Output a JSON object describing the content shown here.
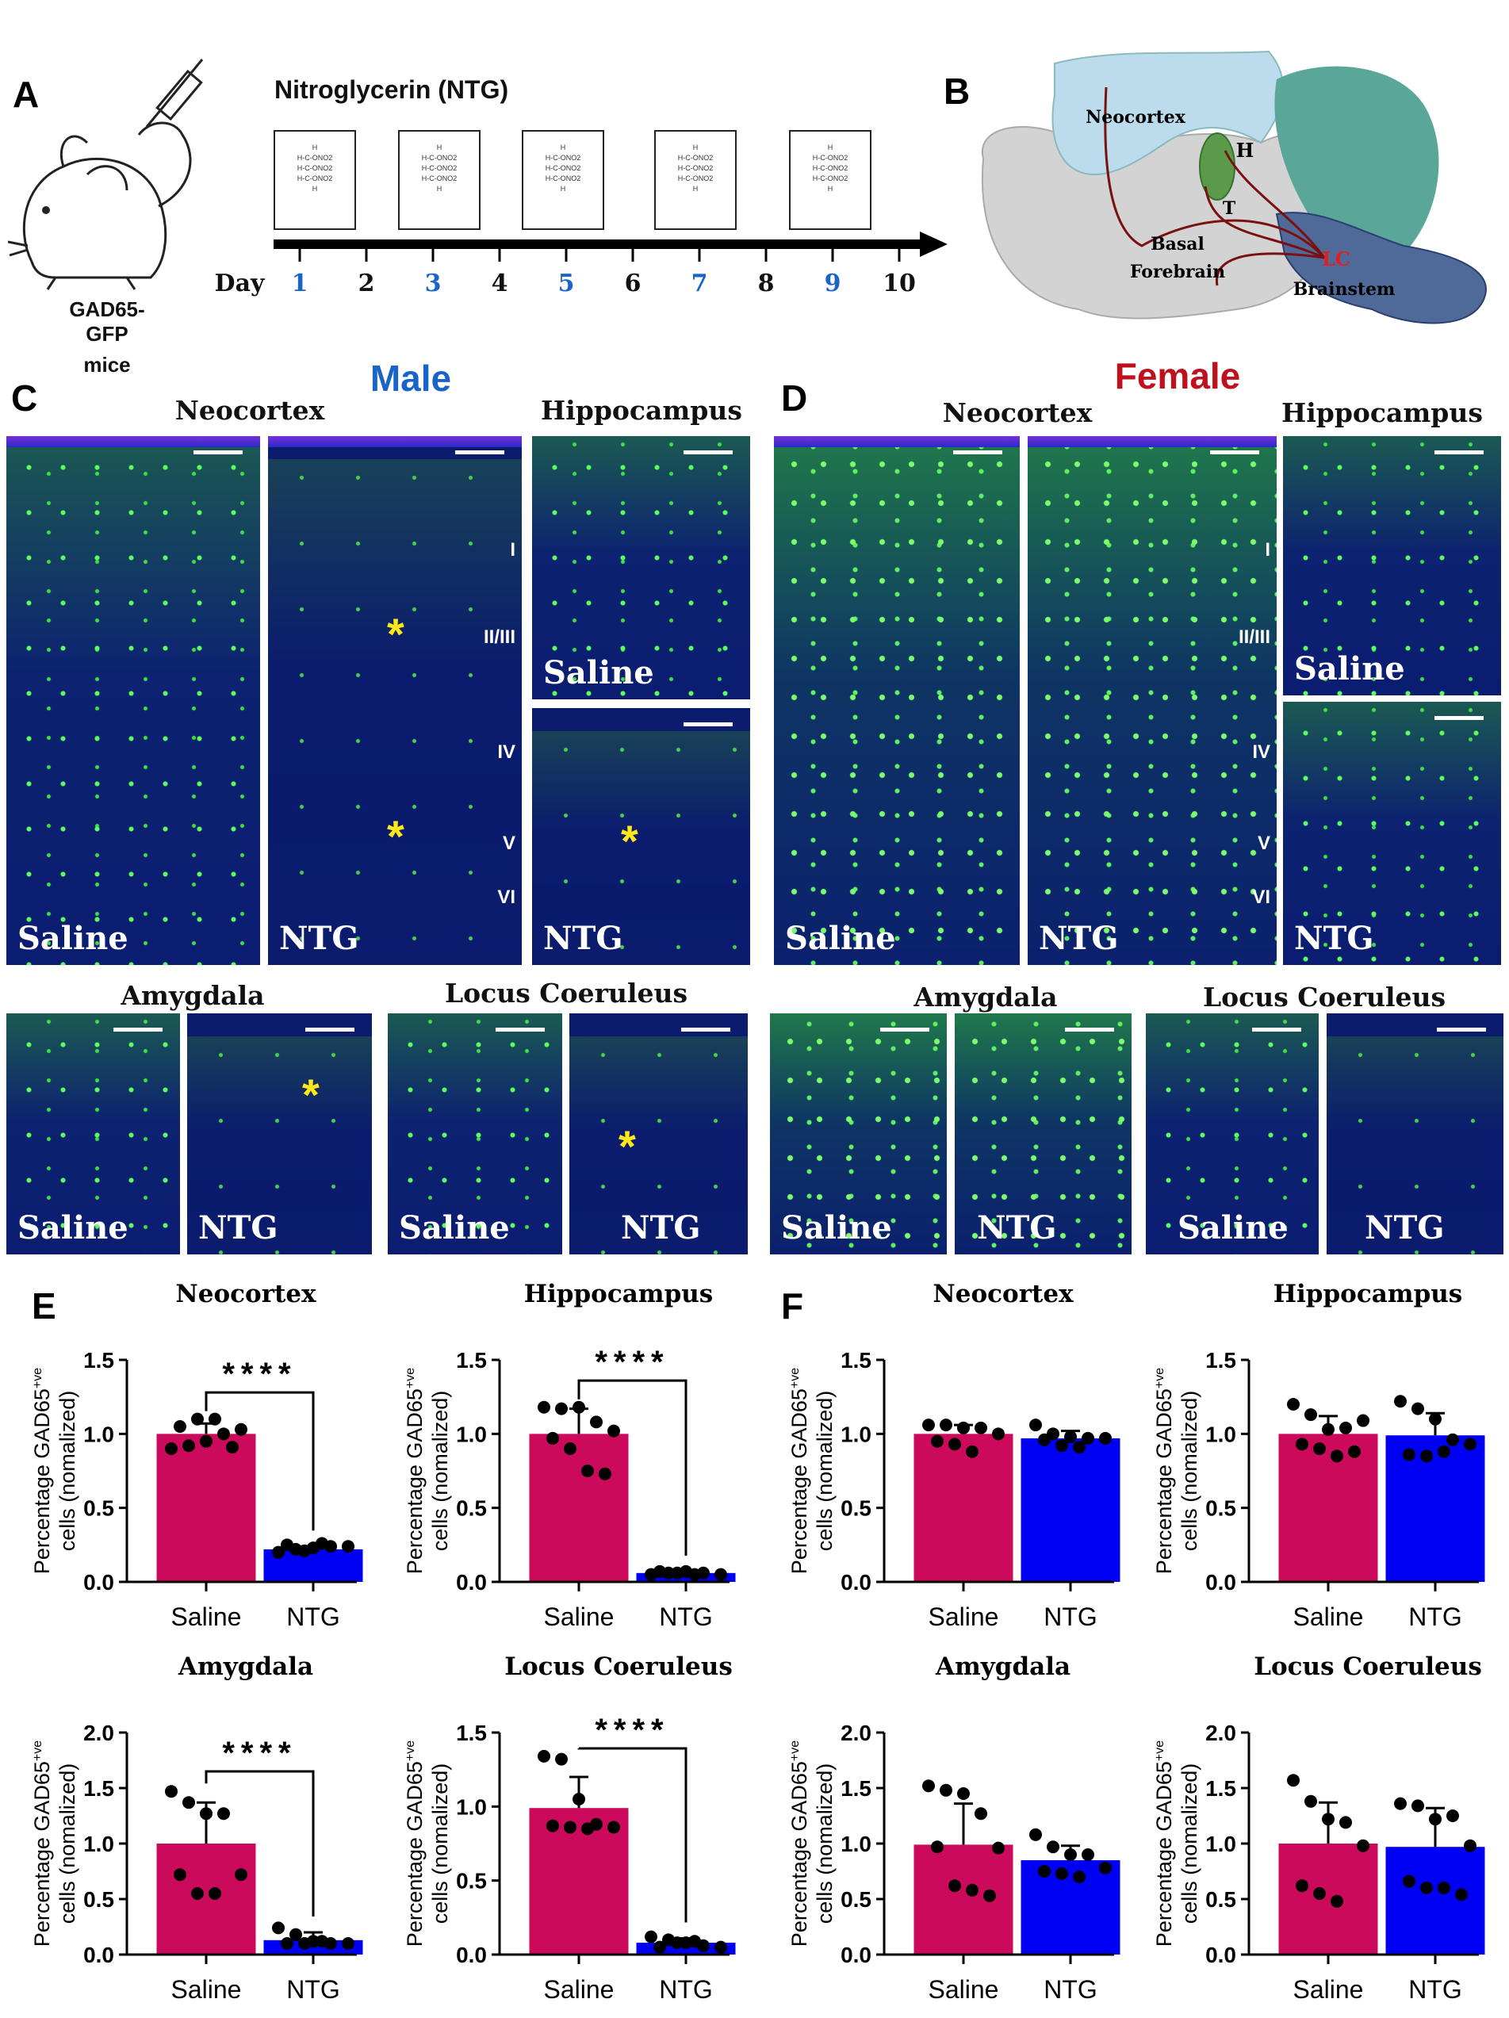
{
  "panel_labels": {
    "a": "A",
    "b": "B",
    "c": "C",
    "d": "D",
    "e": "E",
    "f": "F"
  },
  "panel_a": {
    "title": "Nitroglycerin (NTG)",
    "mouse_label_line1": "GAD65-GFP",
    "mouse_label_line2": "mice",
    "day_label": "Day",
    "molecule_text": [
      "H",
      "H-C-ONO2",
      "H-C-ONO2",
      "H-C-ONO2",
      "H"
    ],
    "days": [
      {
        "n": "1",
        "injection": true
      },
      {
        "n": "2",
        "injection": false
      },
      {
        "n": "3",
        "injection": true
      },
      {
        "n": "4",
        "injection": false
      },
      {
        "n": "5",
        "injection": true
      },
      {
        "n": "6",
        "injection": false
      },
      {
        "n": "7",
        "injection": true
      },
      {
        "n": "8",
        "injection": false
      },
      {
        "n": "9",
        "injection": true
      },
      {
        "n": "10",
        "injection": false
      }
    ],
    "injection_day_color": "#1a64c8"
  },
  "panel_b": {
    "labels": {
      "neocortex": "Neocortex",
      "h": "H",
      "t": "T",
      "basal": "Basal",
      "forebrain": "Forebrain",
      "lc": "LC",
      "brainstem": "Brainstem"
    }
  },
  "panel_c": {
    "sex": "Male",
    "sex_color": "#1a64c8",
    "neocortex": "Neocortex",
    "hippocampus": "Hippocampus",
    "amygdala": "Amygdala",
    "locus_coeruleus": "Locus Coeruleus",
    "saline": "Saline",
    "ntg": "NTG"
  },
  "panel_d": {
    "sex": "Female",
    "sex_color": "#c0101e",
    "neocortex": "Neocortex",
    "hippocampus": "Hippocampus",
    "amygdala": "Amygdala",
    "locus_coeruleus": "Locus Coeruleus",
    "saline": "Saline",
    "ntg": "NTG"
  },
  "layers": [
    "I",
    "II/III",
    "IV",
    "V",
    "VI"
  ],
  "asterisk": "*",
  "colors": {
    "saline": "#cc0a5c",
    "ntg": "#0000f5"
  },
  "chart_data": [
    {
      "panel": "E",
      "type": "bar",
      "title": "Neocortex",
      "ylabel_line1": "Percentage GAD65",
      "ylabel_sup": "+ve",
      "ylabel_line2": "cells (nomalized)",
      "categories": [
        "Saline",
        "NTG"
      ],
      "values": [
        1.0,
        0.22
      ],
      "error": [
        0.07,
        0.02
      ],
      "ylim": [
        0,
        1.5
      ],
      "yticks": [
        "0.0",
        "0.5",
        "1.0",
        "1.5"
      ],
      "points": [
        [
          0.9,
          0.92,
          0.95,
          1.0,
          1.03,
          1.05,
          1.1,
          1.1,
          0.91
        ],
        [
          0.2,
          0.22,
          0.23,
          0.24,
          0.24,
          0.25,
          0.21,
          0.26
        ]
      ],
      "significance": "****"
    },
    {
      "panel": "E",
      "type": "bar",
      "title": "Hippocampus",
      "ylabel_line1": "Percentage GAD65",
      "ylabel_sup": "+ve",
      "ylabel_line2": "cells (nomalized)",
      "categories": [
        "Saline",
        "NTG"
      ],
      "values": [
        1.0,
        0.06
      ],
      "error": [
        0.17,
        0.01
      ],
      "ylim": [
        0,
        1.5
      ],
      "yticks": [
        "0.0",
        "0.5",
        "1.0",
        "1.5"
      ],
      "points": [
        [
          1.18,
          1.17,
          1.18,
          1.08,
          1.02,
          0.97,
          0.9,
          0.75,
          0.73
        ],
        [
          0.05,
          0.06,
          0.07,
          0.06,
          0.05,
          0.07,
          0.06,
          0.05
        ]
      ],
      "significance": "****"
    },
    {
      "panel": "E",
      "type": "bar",
      "title": "Amygdala",
      "ylabel_line1": "Percentage GAD65",
      "ylabel_sup": "+ve",
      "ylabel_line2": "cells (nomalized)",
      "categories": [
        "Saline",
        "NTG"
      ],
      "values": [
        1.0,
        0.13
      ],
      "error": [
        0.37,
        0.07
      ],
      "ylim": [
        0,
        2.0
      ],
      "yticks": [
        "0.0",
        "0.5",
        "1.0",
        "1.5",
        "2.0"
      ],
      "points": [
        [
          1.47,
          1.37,
          1.27,
          1.27,
          0.72,
          0.72,
          0.55,
          0.55
        ],
        [
          0.24,
          0.18,
          0.12,
          0.1,
          0.1,
          0.1,
          0.1,
          0.12
        ]
      ],
      "significance": "****"
    },
    {
      "panel": "E",
      "type": "bar",
      "title": "Locus Coeruleus",
      "ylabel_line1": "Percentage GAD65",
      "ylabel_sup": "+ve",
      "ylabel_line2": "cells (nomalized)",
      "categories": [
        "Saline",
        "NTG"
      ],
      "values": [
        0.99,
        0.08
      ],
      "error": [
        0.21,
        0.03
      ],
      "ylim": [
        0,
        1.5
      ],
      "yticks": [
        "0.0",
        "0.5",
        "1.0",
        "1.5"
      ],
      "points": [
        [
          1.34,
          1.32,
          1.05,
          0.88,
          0.86,
          0.87,
          0.86,
          0.85
        ],
        [
          0.12,
          0.1,
          0.08,
          0.06,
          0.05,
          0.05,
          0.08,
          0.09
        ]
      ],
      "significance": "****"
    },
    {
      "panel": "F",
      "type": "bar",
      "title": "Neocortex",
      "ylabel_line1": "Percentage GAD65",
      "ylabel_sup": "+ve",
      "ylabel_line2": "cells (nomalized)",
      "categories": [
        "Saline",
        "NTG"
      ],
      "values": [
        1.0,
        0.97
      ],
      "error": [
        0.06,
        0.05
      ],
      "ylim": [
        0,
        1.5
      ],
      "yticks": [
        "0.0",
        "0.5",
        "1.0",
        "1.5"
      ],
      "points": [
        [
          1.06,
          1.06,
          1.04,
          1.04,
          1.0,
          0.95,
          0.93,
          0.88
        ],
        [
          1.06,
          1.0,
          0.98,
          0.97,
          0.97,
          0.96,
          0.92,
          0.91
        ]
      ],
      "significance": ""
    },
    {
      "panel": "F",
      "type": "bar",
      "title": "Hippocampus",
      "ylabel_line1": "Percentage GAD65",
      "ylabel_sup": "+ve",
      "ylabel_line2": "cells (nomalized)",
      "categories": [
        "Saline",
        "NTG"
      ],
      "values": [
        1.0,
        0.99
      ],
      "error": [
        0.12,
        0.15
      ],
      "ylim": [
        0,
        1.5
      ],
      "yticks": [
        "0.0",
        "0.5",
        "1.0",
        "1.5"
      ],
      "points": [
        [
          1.2,
          1.13,
          1.03,
          1.04,
          1.09,
          0.93,
          0.9,
          0.85,
          0.88
        ],
        [
          1.22,
          1.17,
          1.1,
          0.96,
          0.93,
          0.86,
          0.85,
          0.88
        ]
      ],
      "significance": ""
    },
    {
      "panel": "F",
      "type": "bar",
      "title": "Amygdala",
      "ylabel_line1": "Percentage GAD65",
      "ylabel_sup": "+ve",
      "ylabel_line2": "cells (nomalized)",
      "categories": [
        "Saline",
        "NTG"
      ],
      "values": [
        0.99,
        0.85
      ],
      "error": [
        0.37,
        0.13
      ],
      "ylim": [
        0,
        2.0
      ],
      "yticks": [
        "0.0",
        "0.5",
        "1.0",
        "1.5",
        "2.0"
      ],
      "points": [
        [
          1.52,
          1.48,
          1.45,
          1.27,
          0.96,
          0.97,
          0.62,
          0.58,
          0.53
        ],
        [
          1.08,
          0.97,
          0.9,
          0.9,
          0.78,
          0.75,
          0.73,
          0.7
        ]
      ],
      "significance": ""
    },
    {
      "panel": "F",
      "type": "bar",
      "title": "Locus Coeruleus",
      "ylabel_line1": "Percentage GAD65",
      "ylabel_sup": "+ve",
      "ylabel_line2": "cells (nomalized)",
      "categories": [
        "Saline",
        "NTG"
      ],
      "values": [
        1.0,
        0.97
      ],
      "error": [
        0.37,
        0.35
      ],
      "ylim": [
        0,
        2.0
      ],
      "yticks": [
        "0.0",
        "0.5",
        "1.0",
        "1.5",
        "2.0"
      ],
      "points": [
        [
          1.57,
          1.38,
          1.22,
          1.19,
          0.98,
          0.62,
          0.55,
          0.48
        ],
        [
          1.36,
          1.34,
          1.22,
          1.25,
          0.98,
          0.66,
          0.6,
          0.6,
          0.54
        ]
      ],
      "significance": ""
    }
  ]
}
